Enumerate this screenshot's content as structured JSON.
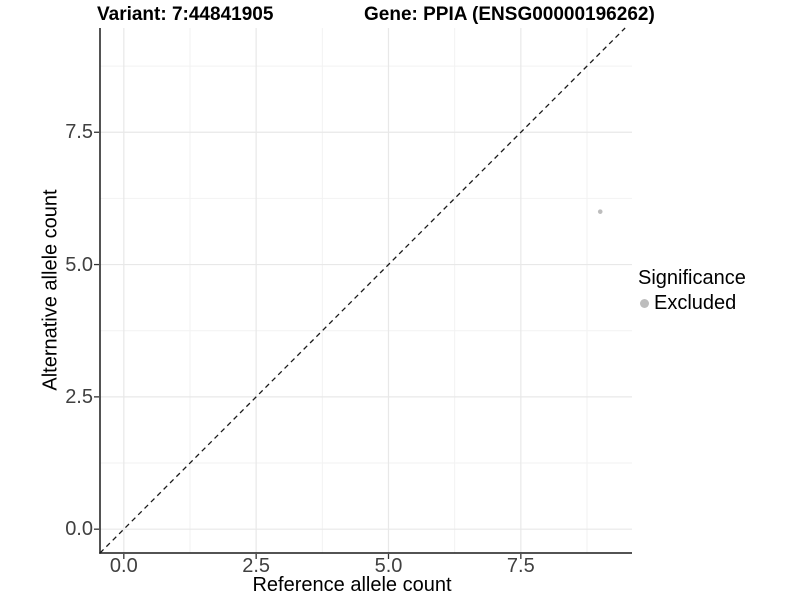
{
  "chart_data": {
    "type": "scatter",
    "title_left": "Variant: 7:44841905",
    "title_right": "Gene: PPIA (ENSG00000196262)",
    "xlabel": "Reference allele count",
    "ylabel": "Alternative allele count",
    "xlim": [
      -0.45,
      9.6
    ],
    "ylim": [
      -0.45,
      9.47
    ],
    "x_ticks": [
      0,
      2.5,
      5,
      7.5
    ],
    "y_ticks": [
      0,
      2.5,
      5,
      7.5
    ],
    "x_tick_labels": [
      "0.0",
      "2.5",
      "5.0",
      "7.5"
    ],
    "y_tick_labels": [
      "0.0",
      "2.5",
      "5.0",
      "7.5"
    ],
    "x_minor": [
      1.25,
      3.75,
      6.25,
      8.75
    ],
    "y_minor": [
      1.25,
      3.75,
      6.25,
      8.75
    ],
    "grid": true,
    "points": [
      {
        "x": 9,
        "y": 6,
        "significance": "Excluded"
      }
    ],
    "reference_line": {
      "kind": "identity",
      "style": "dashed"
    },
    "legend": {
      "title": "Significance",
      "position": "right",
      "items": [
        {
          "label": "Excluded",
          "color": "#bdbdbd"
        }
      ]
    },
    "colors": {
      "point": "#bdbdbd",
      "axis_line": "#1a1a1a",
      "tick_mark": "#333333",
      "tick_text": "#404040",
      "grid_major": "#e8e8e8",
      "grid_minor": "#f2f2f2",
      "reference_line": "#1a1a1a",
      "background": "#ffffff"
    }
  }
}
